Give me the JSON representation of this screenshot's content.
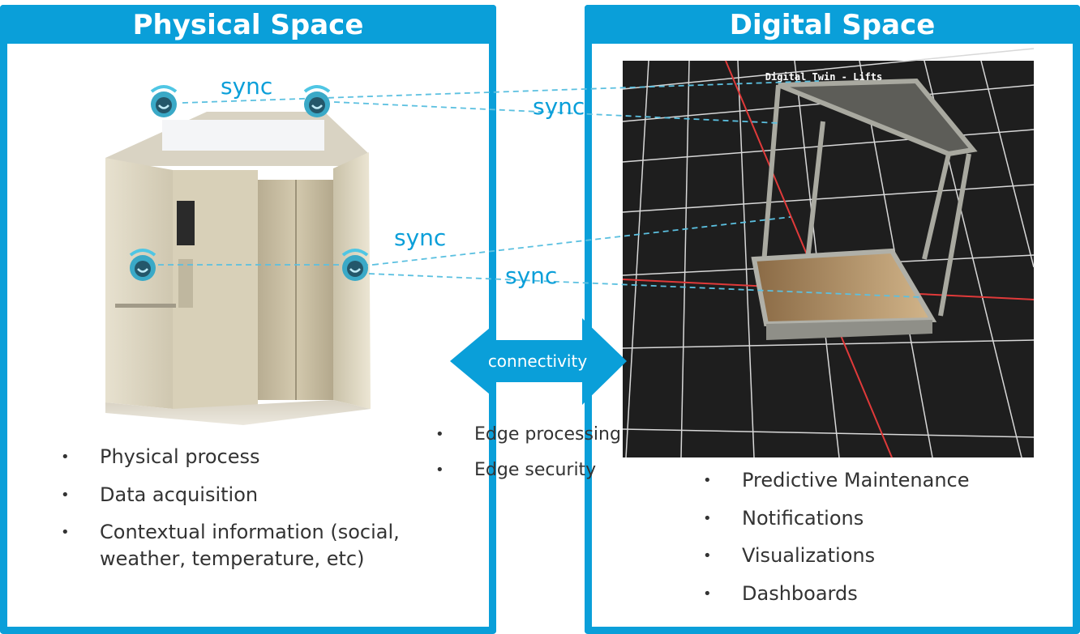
{
  "physical": {
    "title": "Physical Space",
    "bullets": [
      "Physical process",
      "Data acquisition",
      "Contextual information (social, weather, temperature, etc)"
    ]
  },
  "digital": {
    "title": "Digital Space",
    "render_label": "Digital Twin - Lifts",
    "bullets": [
      "Predictive Maintenance",
      "Notifications",
      "Visualizations",
      "Dashboards"
    ]
  },
  "connectivity": {
    "label": "connectivity",
    "bullets": [
      "Edge processing",
      "Edge security"
    ]
  },
  "sync_labels": [
    "sync",
    "sync",
    "sync",
    "sync"
  ],
  "colors": {
    "accent": "#0a9fd9",
    "sync_line": "#5bc0e0",
    "grid": "#d8d8d8",
    "axis": "#e03a3a"
  },
  "icons": {
    "sensor": "wifi-sensor-icon",
    "arrow": "double-arrow-icon"
  }
}
